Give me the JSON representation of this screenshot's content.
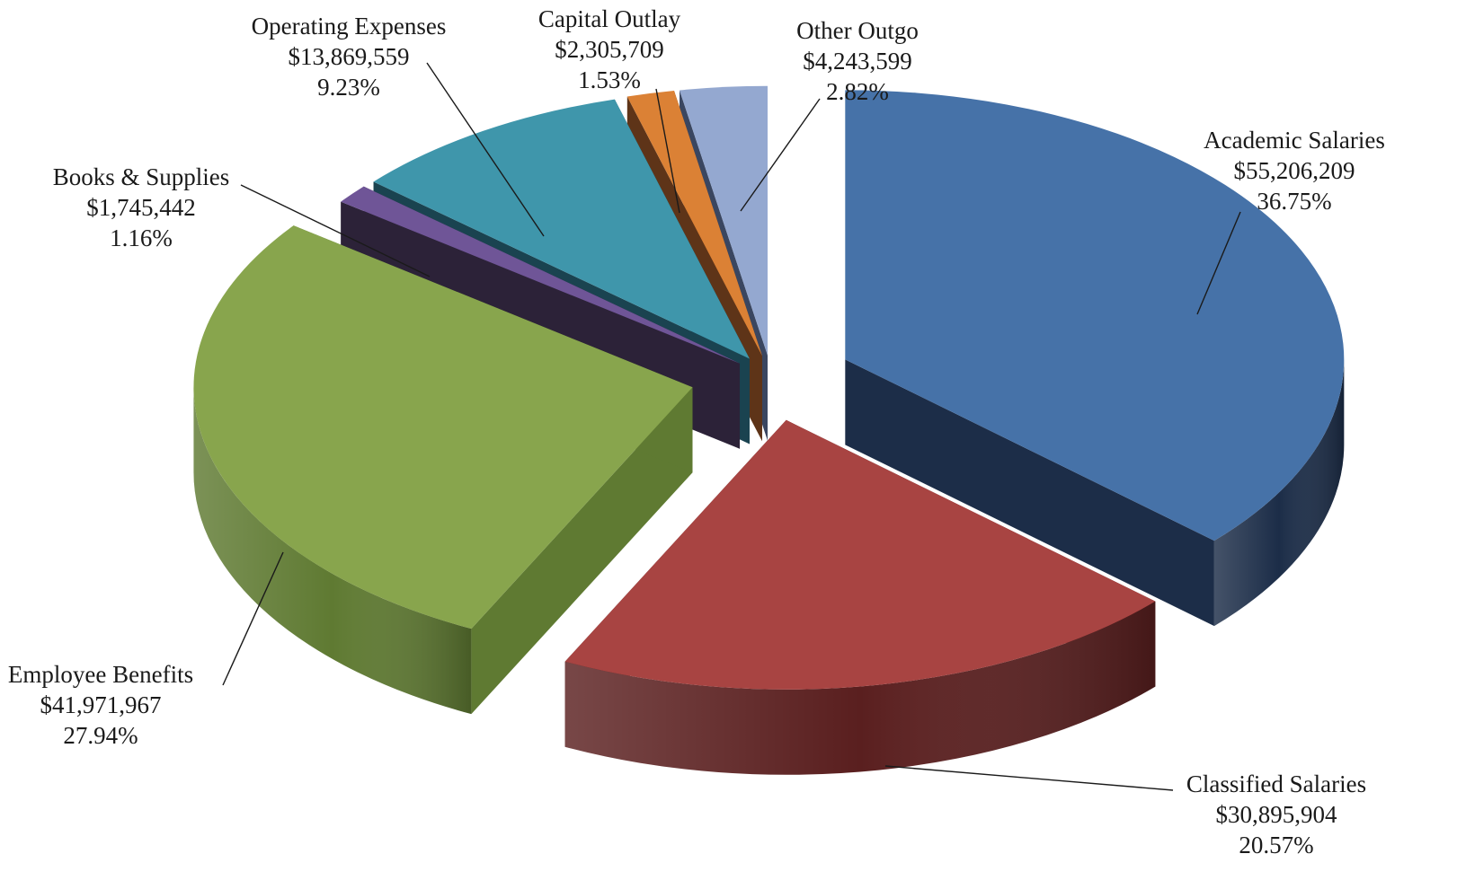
{
  "chart_data": {
    "type": "pie",
    "title": "",
    "style": "3d-exploded",
    "slices": [
      {
        "name": "Academic Salaries",
        "value": 55206209,
        "value_label": "$55,206,209",
        "percent_label": "36.75%",
        "color": "#4672a8",
        "side_color": "#1c2d48"
      },
      {
        "name": "Classified Salaries",
        "value": 30895904,
        "value_label": "$30,895,904",
        "percent_label": "20.57%",
        "color": "#a84442",
        "side_color": "#5a1f1f"
      },
      {
        "name": "Employee Benefits",
        "value": 41971967,
        "value_label": "$41,971,967",
        "percent_label": "27.94%",
        "color": "#88a54d",
        "side_color": "#5f7a32"
      },
      {
        "name": "Books & Supplies",
        "value": 1745442,
        "value_label": "$1,745,442",
        "percent_label": "1.16%",
        "color": "#6f5597",
        "side_color": "#2c2238"
      },
      {
        "name": "Operating Expenses",
        "value": 13869559,
        "value_label": "$13,869,559",
        "percent_label": "9.23%",
        "color": "#3f96ab",
        "side_color": "#1a4350"
      },
      {
        "name": "Capital Outlay",
        "value": 2305709,
        "value_label": "$2,305,709",
        "percent_label": "1.53%",
        "color": "#db8135",
        "side_color": "#5e3418"
      },
      {
        "name": "Other Outgo",
        "value": 4243599,
        "value_label": "$4,243,599",
        "percent_label": "2.82%",
        "color": "#94a8d0",
        "side_color": "#3a4660"
      }
    ]
  }
}
